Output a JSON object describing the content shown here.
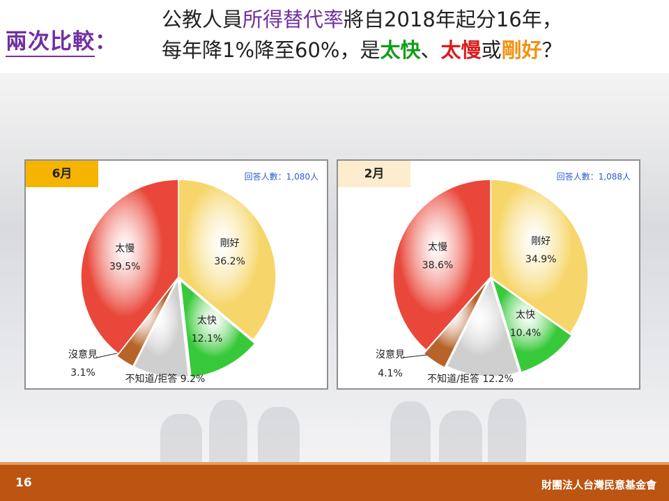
{
  "header": {
    "left_title": "兩次比較",
    "left_colon": "：",
    "line1": [
      "公教人員",
      "所得替代率",
      "將自2018年起分16年，"
    ],
    "line2": [
      "每年降1%降至60%，是",
      "太快",
      "、",
      "太慢",
      "或",
      "剛好",
      "？"
    ]
  },
  "colors": {
    "title_purple": "#7030a0",
    "slow": "#e9473a",
    "good": "#f6d66a",
    "fast": "#38c93a",
    "dunno": "#cfcfcf",
    "no_opinion": "#b8632a",
    "footer": "#bc5412"
  },
  "chart_data": [
    {
      "type": "pie",
      "title": "6月",
      "respondents": "回答人數：1,080人",
      "slices": [
        {
          "label": "剛好",
          "value": 36.2,
          "display": "36.2%"
        },
        {
          "label": "太快",
          "value": 12.1,
          "display": "12.1%"
        },
        {
          "label": "不知道/拒答",
          "value": 9.2,
          "display": "9.2%"
        },
        {
          "label": "沒意見",
          "value": 3.1,
          "display": "3.1%"
        },
        {
          "label": "太慢",
          "value": 39.5,
          "display": "39.5%"
        }
      ]
    },
    {
      "type": "pie",
      "title": "2月",
      "respondents": "回答人數：1,088人",
      "slices": [
        {
          "label": "剛好",
          "value": 34.9,
          "display": "34.9%"
        },
        {
          "label": "太快",
          "value": 10.4,
          "display": "10.4%"
        },
        {
          "label": "不知道/拒答",
          "value": 12.2,
          "display": "12.2%"
        },
        {
          "label": "沒意見",
          "value": 4.1,
          "display": "4.1%"
        },
        {
          "label": "太慢",
          "value": 38.6,
          "display": "38.6%"
        }
      ]
    }
  ],
  "footer": {
    "page": "16",
    "org": "財團法人台灣民意基金會"
  }
}
